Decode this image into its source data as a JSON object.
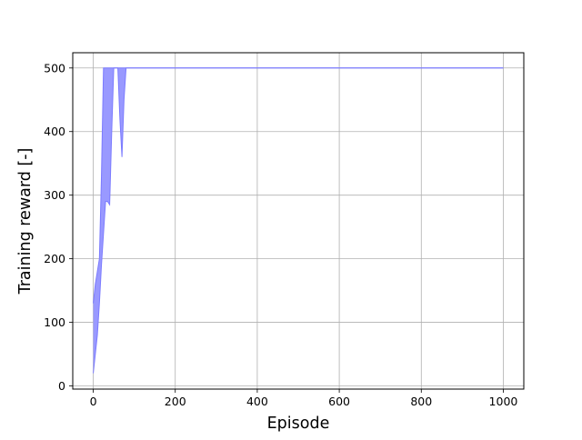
{
  "chart_data": {
    "type": "area",
    "title": "",
    "xlabel": "Episode",
    "ylabel": "Training reward [-]",
    "xlim": [
      -50,
      1050
    ],
    "ylim": [
      -5,
      524
    ],
    "xticks": [
      0,
      200,
      400,
      600,
      800,
      1000
    ],
    "yticks": [
      0,
      100,
      200,
      300,
      400,
      500
    ],
    "grid": true,
    "fill_color": "#9999ff",
    "line_color": "#7b7bff",
    "x": [
      0,
      5,
      10,
      15,
      20,
      25,
      30,
      35,
      40,
      45,
      50,
      55,
      60,
      65,
      70,
      75,
      80,
      85,
      90,
      100,
      200,
      300,
      400,
      500,
      600,
      700,
      800,
      900,
      1000
    ],
    "series": [
      {
        "name": "upper",
        "values": [
          130,
          160,
          180,
          200,
          330,
          500,
          500,
          500,
          500,
          500,
          500,
          500,
          500,
          500,
          500,
          500,
          500,
          500,
          500,
          500,
          500,
          500,
          500,
          500,
          500,
          500,
          500,
          500,
          500
        ]
      },
      {
        "name": "lower",
        "values": [
          20,
          50,
          80,
          130,
          190,
          240,
          290,
          290,
          285,
          400,
          500,
          500,
          500,
          420,
          360,
          450,
          500,
          500,
          500,
          500,
          500,
          500,
          500,
          500,
          500,
          500,
          500,
          500,
          500
        ]
      }
    ]
  }
}
